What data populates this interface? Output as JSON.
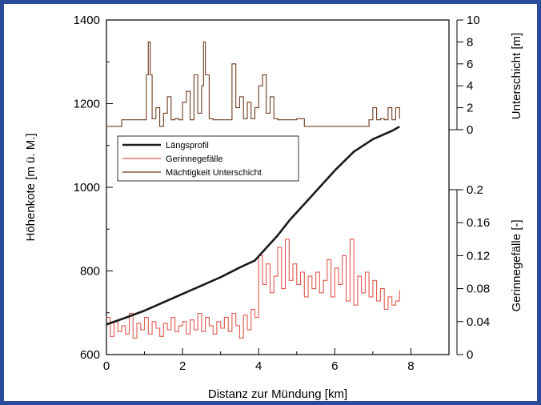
{
  "chart_data": {
    "type": "line",
    "xlabel": "Distanz zur Mündung [km]",
    "xlim": [
      0,
      9
    ],
    "xticks": [
      0,
      2,
      4,
      6,
      8
    ],
    "axes": {
      "left": {
        "label": "Höhenkote [m ü. M.]",
        "lim": [
          600,
          1400
        ],
        "ticks": [
          600,
          800,
          1000,
          1200,
          1400
        ]
      },
      "right_top": {
        "label": "Unterschicht [m]",
        "lim": [
          0,
          10
        ],
        "ticks": [
          0,
          2,
          4,
          6,
          8,
          10
        ]
      },
      "right_bottom": {
        "label": "Gerinnegefälle [-]",
        "lim": [
          0,
          0.2
        ],
        "ticks": [
          "0",
          "0.04",
          "0.08",
          "0.12",
          "0.16",
          "0.2"
        ],
        "tick_values": [
          0,
          0.04,
          0.08,
          0.12,
          0.16,
          0.2
        ]
      }
    },
    "legend": {
      "placement": "upper-left"
    },
    "series": [
      {
        "name": "Längsprofil",
        "axis": "left",
        "color": "#1a1a1a",
        "x": [
          0,
          0.5,
          1.0,
          1.5,
          2.0,
          2.5,
          3.0,
          3.5,
          3.9,
          4.2,
          4.5,
          4.8,
          5.2,
          5.6,
          6.0,
          6.5,
          7.0,
          7.5,
          7.7
        ],
        "y": [
          672,
          688,
          705,
          725,
          745,
          765,
          785,
          808,
          825,
          855,
          885,
          920,
          960,
          1000,
          1040,
          1085,
          1115,
          1135,
          1145
        ]
      },
      {
        "name": "Gerinnegefälle",
        "axis": "right_bottom",
        "color": "#e05a4f",
        "x": [
          0,
          0.1,
          0.2,
          0.3,
          0.4,
          0.5,
          0.6,
          0.7,
          0.8,
          0.9,
          1.0,
          1.1,
          1.2,
          1.3,
          1.4,
          1.5,
          1.6,
          1.7,
          1.8,
          1.9,
          2.0,
          2.1,
          2.2,
          2.3,
          2.4,
          2.5,
          2.6,
          2.7,
          2.8,
          2.9,
          3.0,
          3.1,
          3.2,
          3.3,
          3.4,
          3.5,
          3.6,
          3.7,
          3.8,
          3.9,
          4.0,
          4.1,
          4.2,
          4.3,
          4.4,
          4.5,
          4.6,
          4.7,
          4.8,
          4.9,
          5.0,
          5.1,
          5.2,
          5.3,
          5.4,
          5.5,
          5.6,
          5.7,
          5.8,
          5.9,
          6.0,
          6.1,
          6.2,
          6.3,
          6.4,
          6.5,
          6.6,
          6.7,
          6.8,
          6.9,
          7.0,
          7.1,
          7.2,
          7.3,
          7.4,
          7.5,
          7.6,
          7.7
        ],
        "y": [
          0.045,
          0.022,
          0.04,
          0.028,
          0.035,
          0.025,
          0.05,
          0.02,
          0.038,
          0.03,
          0.045,
          0.025,
          0.04,
          0.032,
          0.022,
          0.038,
          0.03,
          0.045,
          0.028,
          0.035,
          0.04,
          0.025,
          0.042,
          0.03,
          0.05,
          0.028,
          0.045,
          0.035,
          0.025,
          0.04,
          0.032,
          0.045,
          0.028,
          0.05,
          0.035,
          0.02,
          0.048,
          0.03,
          0.055,
          0.045,
          0.12,
          0.085,
          0.11,
          0.075,
          0.095,
          0.13,
          0.08,
          0.14,
          0.09,
          0.11,
          0.085,
          0.1,
          0.07,
          0.095,
          0.08,
          0.1,
          0.075,
          0.09,
          0.115,
          0.07,
          0.105,
          0.085,
          0.12,
          0.065,
          0.14,
          0.06,
          0.095,
          0.075,
          0.1,
          0.07,
          0.09,
          0.065,
          0.08,
          0.055,
          0.07,
          0.06,
          0.065,
          0.078
        ]
      },
      {
        "name": "Mächtigkeit Unterschicht",
        "axis": "right_top",
        "color": "#6e3b1f",
        "x": [
          0,
          0.2,
          0.4,
          0.6,
          0.8,
          1.0,
          1.05,
          1.1,
          1.15,
          1.2,
          1.3,
          1.4,
          1.5,
          1.6,
          1.7,
          1.8,
          1.9,
          2.0,
          2.1,
          2.2,
          2.3,
          2.4,
          2.5,
          2.55,
          2.6,
          2.7,
          2.8,
          2.9,
          3.0,
          3.1,
          3.2,
          3.3,
          3.4,
          3.5,
          3.6,
          3.7,
          3.8,
          3.9,
          4.0,
          4.1,
          4.2,
          4.3,
          4.4,
          4.5,
          4.6,
          4.7,
          4.8,
          4.9,
          5.0,
          5.1,
          5.2,
          5.5,
          6.0,
          6.5,
          6.9,
          7.0,
          7.1,
          7.2,
          7.3,
          7.4,
          7.5,
          7.6,
          7.7
        ],
        "y": [
          0.3,
          0.3,
          0.9,
          0.9,
          0.9,
          0.9,
          5.0,
          8.0,
          5.0,
          1.0,
          2.0,
          0.3,
          1.5,
          3.0,
          0.9,
          1.0,
          0.9,
          2.5,
          3.5,
          0.9,
          5.0,
          1.5,
          4.0,
          8.0,
          5.0,
          1.0,
          0.9,
          0.9,
          0.9,
          0.9,
          0.9,
          6.0,
          2.0,
          3.0,
          1.0,
          2.5,
          1.0,
          2.0,
          4.0,
          5.0,
          1.5,
          3.0,
          1.0,
          0.9,
          0.9,
          0.9,
          0.9,
          0.9,
          1.0,
          1.0,
          0.3,
          0.3,
          0.3,
          0.3,
          0.9,
          2.0,
          0.9,
          1.0,
          0.9,
          2.0,
          0.9,
          2.0,
          1.0
        ]
      }
    ]
  }
}
